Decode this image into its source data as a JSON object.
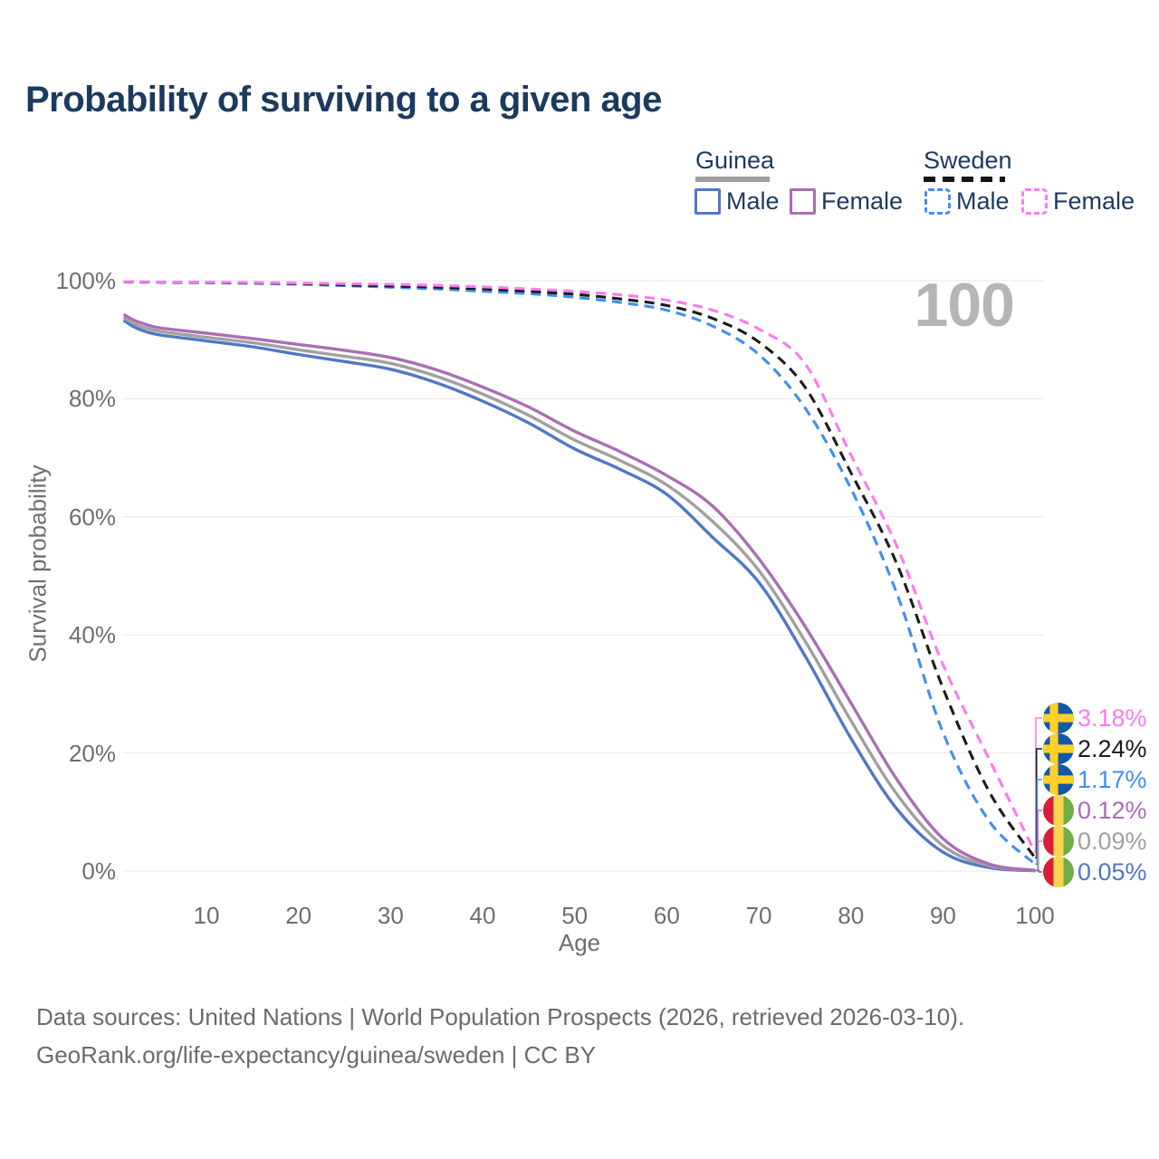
{
  "title": "Probability of surviving to a given age",
  "legend": {
    "groups": [
      {
        "label": "Guinea",
        "line_style": "solid",
        "underline_color": "#9e9e9e",
        "items": [
          {
            "label": "Male",
            "color": "#5077c8"
          },
          {
            "label": "Female",
            "color": "#ab6db4"
          }
        ]
      },
      {
        "label": "Sweden",
        "line_style": "dashed",
        "underline_color": "#141414",
        "items": [
          {
            "label": "Male",
            "color": "#3f8ef4"
          },
          {
            "label": "Female",
            "color": "#fb7af0"
          }
        ]
      }
    ]
  },
  "watermark": "100",
  "y_axis": {
    "title": "Survival probability",
    "tick_labels": [
      "100%",
      "80%",
      "60%",
      "40%",
      "20%",
      "0%"
    ],
    "tick_values": [
      100,
      80,
      60,
      40,
      20,
      0
    ]
  },
  "x_axis": {
    "title": "Age",
    "tick_labels": [
      "10",
      "20",
      "30",
      "40",
      "50",
      "60",
      "70",
      "80",
      "90",
      "100"
    ],
    "tick_values": [
      10,
      20,
      30,
      40,
      50,
      60,
      70,
      80,
      90,
      100
    ]
  },
  "chart_data": {
    "type": "line",
    "title": "Probability of surviving to a given age",
    "xlabel": "Age",
    "ylabel": "Survival probability",
    "xlim": [
      1,
      100
    ],
    "ylim": [
      0,
      100
    ],
    "grid": true,
    "legend_position": "top-right",
    "x": [
      1,
      2,
      3,
      5,
      10,
      15,
      20,
      25,
      30,
      35,
      40,
      45,
      50,
      55,
      60,
      65,
      70,
      75,
      80,
      85,
      90,
      95,
      100
    ],
    "series": [
      {
        "name": "Sweden Female",
        "country": "Sweden",
        "sex": "Female",
        "style": "dashed",
        "color": "#fb7af0",
        "flag": "sweden",
        "end_label": "3.18%",
        "values": [
          99.85,
          99.83,
          99.81,
          99.79,
          99.74,
          99.68,
          99.6,
          99.5,
          99.38,
          99.2,
          98.95,
          98.6,
          98.2,
          97.6,
          96.7,
          95.0,
          91.8,
          86.0,
          70.5,
          55.0,
          35.0,
          19.0,
          3.18
        ]
      },
      {
        "name": "Sweden Both sexes",
        "country": "Sweden",
        "sex": "Both",
        "style": "dashed",
        "color": "#1b1b1b",
        "flag": "sweden",
        "end_label": "2.24%",
        "values": [
          99.82,
          99.8,
          99.78,
          99.76,
          99.7,
          99.6,
          99.5,
          99.3,
          99.1,
          98.9,
          98.6,
          98.2,
          97.7,
          96.9,
          95.8,
          93.6,
          89.6,
          82.0,
          67.5,
          52.0,
          31.0,
          13.5,
          2.24
        ]
      },
      {
        "name": "Sweden Male",
        "country": "Sweden",
        "sex": "Male",
        "style": "dashed",
        "color": "#3f8ef4",
        "flag": "sweden",
        "end_label": "1.17%",
        "values": [
          99.8,
          99.78,
          99.76,
          99.73,
          99.65,
          99.55,
          99.4,
          99.15,
          98.9,
          98.6,
          98.2,
          97.8,
          97.2,
          96.3,
          95.0,
          92.3,
          87.5,
          78.5,
          64.8,
          47.0,
          23.5,
          8.5,
          1.17
        ]
      },
      {
        "name": "Guinea Female",
        "country": "Guinea",
        "sex": "Female",
        "style": "solid",
        "color": "#ab6db4",
        "flag": "guinea",
        "end_label": "0.12%",
        "values": [
          94.3,
          93.4,
          92.8,
          92.0,
          91.1,
          90.2,
          89.2,
          88.2,
          87.0,
          84.9,
          82.0,
          78.6,
          74.5,
          71.0,
          67.0,
          61.8,
          52.9,
          41.5,
          28.5,
          15.5,
          5.5,
          1.2,
          0.12
        ]
      },
      {
        "name": "Guinea Both sexes",
        "country": "Guinea",
        "sex": "Both",
        "style": "solid",
        "color": "#a0a0a0",
        "flag": "guinea",
        "end_label": "0.09%",
        "values": [
          93.8,
          92.8,
          92.2,
          91.4,
          90.4,
          89.5,
          88.3,
          87.2,
          86.0,
          83.8,
          80.8,
          77.2,
          73.0,
          69.5,
          65.4,
          59.2,
          50.9,
          39.0,
          25.5,
          13.0,
          4.3,
          0.9,
          0.09
        ]
      },
      {
        "name": "Guinea Male",
        "country": "Guinea",
        "sex": "Male",
        "style": "solid",
        "color": "#5077c8",
        "flag": "guinea",
        "end_label": "0.05%",
        "values": [
          93.3,
          92.3,
          91.6,
          90.8,
          89.8,
          88.8,
          87.5,
          86.3,
          85.0,
          82.7,
          79.6,
          75.9,
          71.5,
          68.0,
          63.8,
          56.5,
          48.9,
          36.5,
          22.5,
          10.5,
          3.2,
          0.6,
          0.05
        ]
      }
    ]
  },
  "footer": {
    "line1": "Data sources: United Nations | World Population Prospects (2026, retrieved 2026-03-10).",
    "line2": "GeoRank.org/life-expectancy/guinea/sweden | CC BY"
  }
}
